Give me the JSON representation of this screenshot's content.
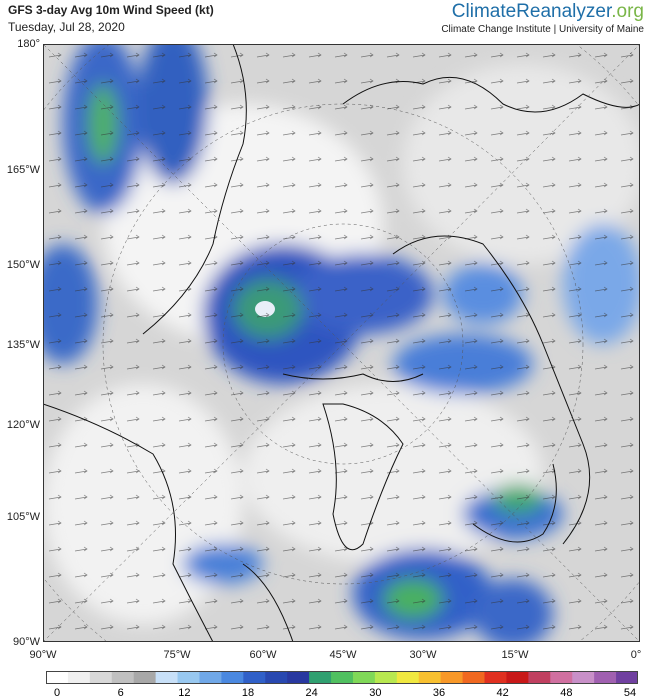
{
  "header": {
    "title": "GFS 3-day Avg 10m Wind Speed (kt)",
    "date": "Tuesday, Jul 28, 2020",
    "brand": "ClimateReanalyzer",
    "brand_suffix": ".org",
    "affiliation": "Climate Change Institute | University of Maine"
  },
  "left_axis": [
    "180°",
    "165°W",
    "150°W",
    "135°W",
    "120°W",
    "105°W",
    "90°W"
  ],
  "bottom_axis": [
    "90°W",
    "75°W",
    "60°W",
    "45°W",
    "30°W",
    "15°W",
    "0°"
  ],
  "colorbar": {
    "ticks": [
      0,
      6,
      12,
      18,
      24,
      30,
      36,
      42,
      48,
      54
    ],
    "colors": [
      "#ffffff",
      "#f0f0f0",
      "#d8d8d8",
      "#c0c0c0",
      "#a8a8a8",
      "#c8e0f8",
      "#98c8f0",
      "#70a8e8",
      "#4a88e0",
      "#3060c8",
      "#2848b0",
      "#2838a0",
      "#30a070",
      "#50c060",
      "#80d858",
      "#b8e850",
      "#f0e840",
      "#f8c030",
      "#f89828",
      "#f06820",
      "#e03020",
      "#c81818",
      "#c04060",
      "#d070a0",
      "#c890c8",
      "#a060b0",
      "#7040a0"
    ]
  }
}
